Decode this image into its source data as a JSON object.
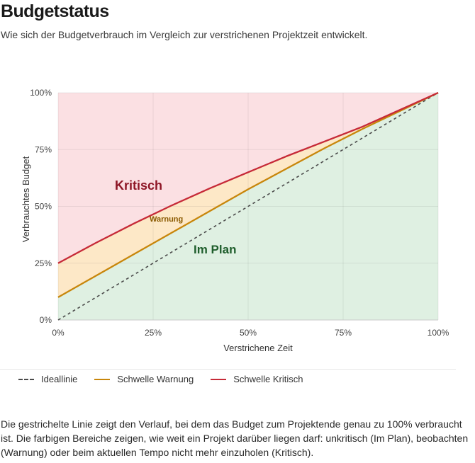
{
  "header": {
    "title": "Budgetstatus",
    "subtitle": "Wie sich der Budgetverbrauch im Vergleich zur verstrichenen Projektzeit entwickelt."
  },
  "chart_data": {
    "type": "area",
    "xlabel": "Verstrichene Zeit",
    "ylabel": "Verbrauchtes Budget",
    "xlim": [
      0,
      100
    ],
    "ylim": [
      0,
      100
    ],
    "x_ticks": [
      "0%",
      "25%",
      "50%",
      "75%",
      "100%"
    ],
    "y_ticks": [
      "0%",
      "25%",
      "50%",
      "75%",
      "100%"
    ],
    "grid": true,
    "legend_position": "bottom-left",
    "x": [
      0,
      10,
      20,
      30,
      40,
      50,
      60,
      70,
      80,
      90,
      100
    ],
    "series": [
      {
        "name": "Ideallinie",
        "style": "dashed",
        "color": "#4a4a4a",
        "values": [
          0,
          10,
          20,
          30,
          40,
          50,
          60,
          70,
          80,
          90,
          100
        ]
      },
      {
        "name": "Schwelle Warnung",
        "style": "solid",
        "color": "#c8860b",
        "values": [
          10,
          19.5,
          29,
          38.5,
          48,
          57.5,
          66.5,
          75.5,
          84,
          92,
          100
        ]
      },
      {
        "name": "Schwelle Kritisch",
        "style": "solid",
        "color": "#c62a38",
        "values": [
          25,
          34,
          42.5,
          50.5,
          58,
          65,
          72,
          78.5,
          85,
          92.5,
          100
        ]
      }
    ],
    "zones": [
      {
        "label": "Kritisch",
        "fill": "#fbe0e3",
        "label_color": "#8e1626"
      },
      {
        "label": "Warnung",
        "fill": "#fde8c7",
        "label_color": "#8a5a00"
      },
      {
        "label": "Im Plan",
        "fill": "#dff0e2",
        "label_color": "#1f5e2c"
      }
    ]
  },
  "footnote": "Die gestrichelte Linie zeigt den Verlauf, bei dem das Budget zum Projektende genau zu 100% verbraucht ist. Die farbigen Bereiche zeigen, wie weit ein Projekt darüber liegen darf: unkritisch (Im Plan), beobachten (Warnung) oder beim aktuellen Tempo nicht mehr einzuholen (Kritisch)."
}
